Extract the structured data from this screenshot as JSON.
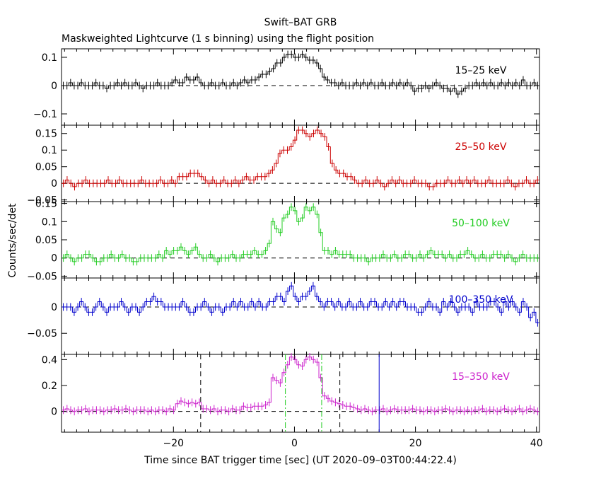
{
  "title": "Swift–BAT GRB",
  "subtitle": "Maskweighted Lightcurve (1 s binning) using the flight position",
  "ylabel": "Counts/sec/det",
  "xlabel": "Time since BAT trigger time [sec] (UT 2020–09–03T00:44:22.4)",
  "chart_data": {
    "type": "line",
    "x_range": [
      -38.5,
      40.5
    ],
    "x_ticks": [
      -20,
      0,
      20,
      40
    ],
    "x_tick_labels": [
      "−20",
      "0",
      "20",
      "40"
    ],
    "x_minor_step": 2,
    "panels": [
      {
        "label": "15–25 keV",
        "color": "#000000",
        "ylim": [
          -0.14,
          0.13
        ],
        "y_ticks": [
          -0.1,
          0,
          0.1
        ],
        "y_tick_labels": [
          "−0.1",
          "0",
          "0.1"
        ],
        "values": [
          0,
          0,
          0.01,
          0,
          0,
          0.01,
          0,
          0,
          0,
          0.01,
          0,
          0,
          -0.01,
          0,
          0,
          0.01,
          0,
          0.01,
          0,
          0,
          0.01,
          0,
          -0.01,
          0,
          0,
          0,
          0.01,
          0,
          0,
          0,
          0.01,
          0.02,
          0.01,
          0.01,
          0.03,
          0.02,
          0.02,
          0.03,
          0.01,
          0,
          0,
          0.01,
          0,
          0,
          0.01,
          0,
          0,
          0.01,
          0,
          0.01,
          0.02,
          0.01,
          0.02,
          0.02,
          0.03,
          0.04,
          0.04,
          0.05,
          0.06,
          0.08,
          0.08,
          0.1,
          0.11,
          0.11,
          0.1,
          0.1,
          0.11,
          0.1,
          0.09,
          0.09,
          0.08,
          0.06,
          0.03,
          0.02,
          0.01,
          0.01,
          0,
          0.01,
          0,
          0,
          0,
          0.01,
          0,
          0.01,
          0,
          0.01,
          0,
          0,
          0.01,
          0,
          0,
          0.01,
          0,
          0.01,
          0,
          0.01,
          0,
          -0.02,
          -0.01,
          -0.01,
          0,
          -0.01,
          0,
          0.01,
          0,
          -0.01,
          -0.01,
          -0.02,
          -0.01,
          -0.03,
          -0.02,
          -0.01,
          0,
          0,
          0.01,
          0,
          0.01,
          0,
          0.01,
          0,
          0,
          0.01,
          0,
          0.01,
          0,
          0.01,
          0,
          0.02,
          0,
          0,
          0.01,
          0
        ],
        "lines": []
      },
      {
        "label": "25–50 keV",
        "color": "#cc0000",
        "ylim": [
          -0.055,
          0.175
        ],
        "y_ticks": [
          -0.05,
          0,
          0.05,
          0.1,
          0.15
        ],
        "y_tick_labels": [
          "−0.05",
          "0",
          "0.05",
          "0.1",
          "0.15"
        ],
        "values": [
          0,
          0.01,
          0,
          -0.01,
          0,
          0,
          0.01,
          0,
          0,
          0,
          0,
          0,
          0.01,
          0,
          0,
          0.01,
          0,
          0,
          0,
          0,
          0,
          0.01,
          0,
          0,
          0,
          0,
          0.01,
          0,
          0,
          0.01,
          0,
          0.02,
          0.02,
          0.02,
          0.03,
          0.03,
          0.03,
          0.02,
          0.01,
          0,
          0.01,
          0,
          0,
          0.01,
          0,
          0,
          0.01,
          0,
          0.01,
          0.02,
          0.01,
          0.01,
          0.02,
          0.02,
          0.02,
          0.03,
          0.04,
          0.06,
          0.09,
          0.1,
          0.1,
          0.11,
          0.13,
          0.16,
          0.16,
          0.15,
          0.14,
          0.15,
          0.16,
          0.15,
          0.14,
          0.11,
          0.06,
          0.04,
          0.03,
          0.03,
          0.02,
          0.02,
          0.01,
          0,
          0,
          0.01,
          0,
          0,
          0.01,
          0,
          -0.01,
          0,
          0.01,
          0,
          0.01,
          0,
          0,
          0,
          0.01,
          0,
          0,
          0,
          -0.01,
          -0.01,
          0,
          0,
          0,
          0.01,
          0,
          0,
          0.01,
          0,
          0.01,
          0,
          0.01,
          0,
          0,
          0,
          0.01,
          0,
          0,
          0,
          0,
          0.01,
          0,
          -0.01,
          0,
          0,
          0.01,
          0,
          0,
          0.01
        ],
        "lines": []
      },
      {
        "label": "50–100 keV",
        "color": "#22cc22",
        "ylim": [
          -0.055,
          0.155
        ],
        "y_ticks": [
          -0.05,
          0,
          0.05,
          0.1,
          0.15
        ],
        "y_tick_labels": [
          "−0.05",
          "0",
          "0.05",
          "0.1",
          "0.15"
        ],
        "values": [
          0,
          0.01,
          0,
          -0.01,
          0,
          0,
          0.01,
          0.01,
          0,
          -0.01,
          -0.01,
          0,
          0,
          0.01,
          0,
          0,
          0.01,
          0,
          0,
          -0.01,
          -0.01,
          0,
          0,
          0,
          0,
          0,
          0.01,
          0,
          0.02,
          0.01,
          0.02,
          0.02,
          0.03,
          0.02,
          0.01,
          0.02,
          0.03,
          0.01,
          0,
          0,
          0.01,
          0,
          -0.01,
          0,
          0,
          0,
          0.01,
          0,
          0,
          0.01,
          0.01,
          0.01,
          0.02,
          0.01,
          0.01,
          0.02,
          0.04,
          0.1,
          0.08,
          0.07,
          0.11,
          0.12,
          0.14,
          0.13,
          0.1,
          0.11,
          0.14,
          0.13,
          0.14,
          0.12,
          0.07,
          0.02,
          0.02,
          0.01,
          0.02,
          0.01,
          0.01,
          0.01,
          0.01,
          0,
          0,
          0,
          0,
          -0.01,
          0,
          0,
          0,
          0.01,
          0,
          0,
          0.01,
          0,
          0,
          0.01,
          0.01,
          0,
          0,
          0.01,
          0,
          0.01,
          0.02,
          0.01,
          0.01,
          0.01,
          0,
          0.01,
          0,
          0,
          0.01,
          0.01,
          0.02,
          0.01,
          0,
          0,
          0.01,
          0,
          0,
          0.01,
          0.01,
          0.01,
          0,
          0.01,
          0,
          -0.01,
          0,
          0.01,
          0,
          0,
          0,
          0
        ],
        "lines": []
      },
      {
        "label": "100–350 keV",
        "color": "#0000cc",
        "ylim": [
          -0.09,
          0.055
        ],
        "y_ticks": [
          -0.05,
          0
        ],
        "y_tick_labels": [
          "−0.05",
          "0"
        ],
        "values": [
          0,
          0,
          0,
          -0.01,
          0,
          0.01,
          0,
          -0.01,
          -0.01,
          0,
          0.01,
          0,
          -0.01,
          0,
          0,
          0,
          0.01,
          0,
          -0.01,
          0,
          0,
          -0.01,
          0,
          0.01,
          0.01,
          0.02,
          0.01,
          0.01,
          0,
          0,
          0,
          0,
          0,
          0.01,
          0,
          -0.01,
          -0.01,
          0,
          0,
          0.01,
          0,
          -0.01,
          0,
          0,
          -0.01,
          0,
          0,
          0.01,
          0,
          0.01,
          0,
          0,
          0.01,
          0,
          0.01,
          0,
          0,
          0.01,
          0.01,
          0.02,
          0.02,
          0.01,
          0.03,
          0.04,
          0.02,
          0.01,
          0.02,
          0.02,
          0.03,
          0.04,
          0.02,
          0.01,
          0,
          0.01,
          0.01,
          0,
          0.01,
          0,
          0,
          0.01,
          0,
          0,
          0.01,
          0,
          0,
          0.01,
          0.01,
          0,
          0,
          0.01,
          0,
          0.01,
          0,
          0.01,
          0.01,
          0,
          0,
          0,
          -0.01,
          -0.01,
          0,
          0.01,
          0,
          0,
          -0.01,
          0.01,
          0,
          0.01,
          0,
          -0.01,
          0,
          0,
          0,
          -0.01,
          0.01,
          0,
          0,
          0,
          0.01,
          0.01,
          0,
          -0.01,
          0.01,
          0,
          0.01,
          0,
          -0.01,
          0.01,
          0,
          -0.02,
          -0.01,
          -0.03
        ],
        "lines": []
      },
      {
        "label": "15–350 keV",
        "color": "#cc22cc",
        "ylim": [
          -0.16,
          0.44
        ],
        "y_ticks": [
          0,
          0.2,
          0.4
        ],
        "y_tick_labels": [
          "0",
          "0.2",
          "0.4"
        ],
        "values": [
          0.01,
          0.02,
          0.01,
          0,
          0.01,
          0.01,
          0.02,
          0,
          0.01,
          0.01,
          0.01,
          0,
          0.01,
          0.01,
          0.02,
          0.01,
          0.01,
          0.02,
          0.01,
          0,
          0.01,
          0.01,
          0.01,
          0,
          0.01,
          0,
          0.01,
          0.01,
          0,
          0.02,
          0.01,
          0.06,
          0.08,
          0.07,
          0.06,
          0.07,
          0.06,
          0.07,
          0.02,
          0.02,
          0.01,
          0.02,
          0,
          0.01,
          0.01,
          0,
          0.02,
          0.01,
          0.01,
          0.04,
          0.03,
          0.03,
          0.04,
          0.04,
          0.04,
          0.05,
          0.07,
          0.26,
          0.24,
          0.22,
          0.3,
          0.36,
          0.42,
          0.4,
          0.36,
          0.35,
          0.4,
          0.42,
          0.4,
          0.38,
          0.26,
          0.12,
          0.1,
          0.08,
          0.07,
          0.06,
          0.05,
          0.04,
          0.04,
          0.03,
          0.02,
          0.01,
          0.02,
          0.01,
          0,
          0.01,
          0.01,
          0.02,
          0,
          0.01,
          0.02,
          0.01,
          0.01,
          0.01,
          0.01,
          0.02,
          0.01,
          0.01,
          0,
          0.01,
          0.01,
          0,
          0.01,
          0.01,
          0.02,
          0.01,
          0,
          0.01,
          0.01,
          0,
          0.01,
          0,
          0.01,
          0.01,
          0.02,
          0,
          0.01,
          0.01,
          0,
          0.01,
          0.02,
          0.01,
          0,
          0.01,
          0.02,
          0,
          0.01,
          0.02,
          0.01,
          0
        ],
        "lines": [
          {
            "x": -15.5,
            "style": "dashed",
            "color": "#000000"
          },
          {
            "x": 7.5,
            "style": "dashed",
            "color": "#000000"
          },
          {
            "x": -1.5,
            "style": "dashdot",
            "color": "#22cc22"
          },
          {
            "x": 4.5,
            "style": "dashdot",
            "color": "#22cc22"
          },
          {
            "x": 14,
            "style": "solid",
            "color": "#0000cc"
          }
        ]
      }
    ]
  }
}
